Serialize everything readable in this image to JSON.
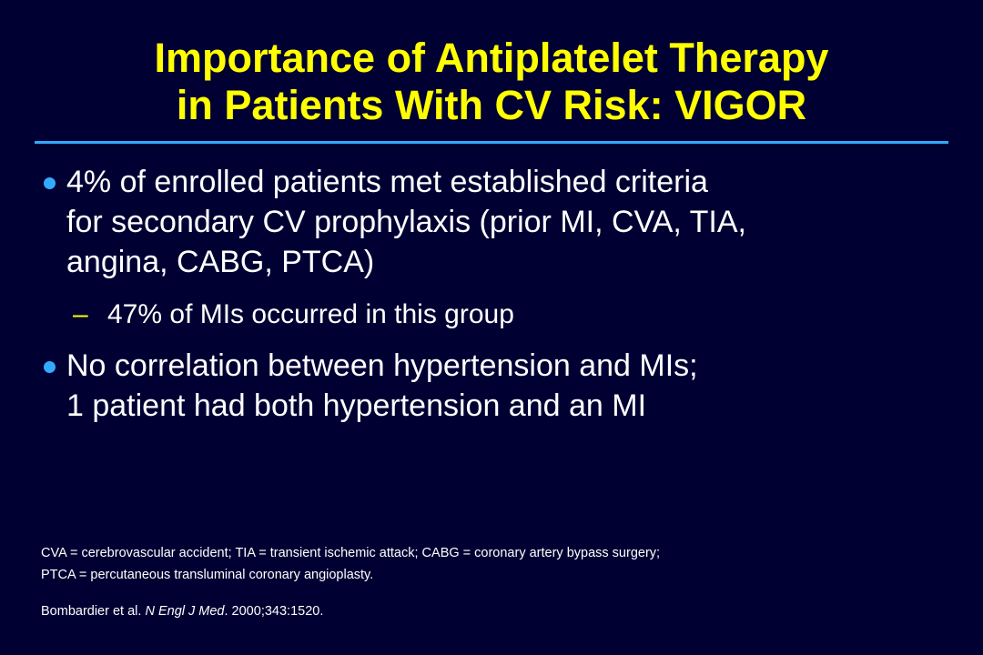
{
  "title": {
    "line1": "Importance of Antiplatelet Therapy",
    "line2": "in Patients With CV Risk: VIGOR"
  },
  "colors": {
    "background": "#000033",
    "title": "#ffff00",
    "divider": "#33aaff",
    "bullet": "#33aaff",
    "dash": "#ffff00",
    "text": "#ffffff"
  },
  "bullets": [
    {
      "lines": [
        "4% of enrolled patients met established criteria",
        "for secondary CV prophylaxis (prior MI, CVA, TIA,",
        "angina, CABG, PTCA)"
      ],
      "sub": {
        "dash": "–",
        "text": "47% of MIs occurred in this group"
      }
    },
    {
      "lines": [
        "No correlation between hypertension and MIs;",
        "1 patient had both hypertension and an MI"
      ]
    }
  ],
  "footnotes": {
    "abbrev_line1": "CVA = cerebrovascular accident; TIA = transient ischemic attack; CABG = coronary artery bypass surgery;",
    "abbrev_line2": "PTCA = percutaneous transluminal coronary angioplasty.",
    "reference": {
      "authors": "Bombardier et al. ",
      "journal": "N Engl J Med",
      "rest": ". 2000;343:1520."
    }
  }
}
